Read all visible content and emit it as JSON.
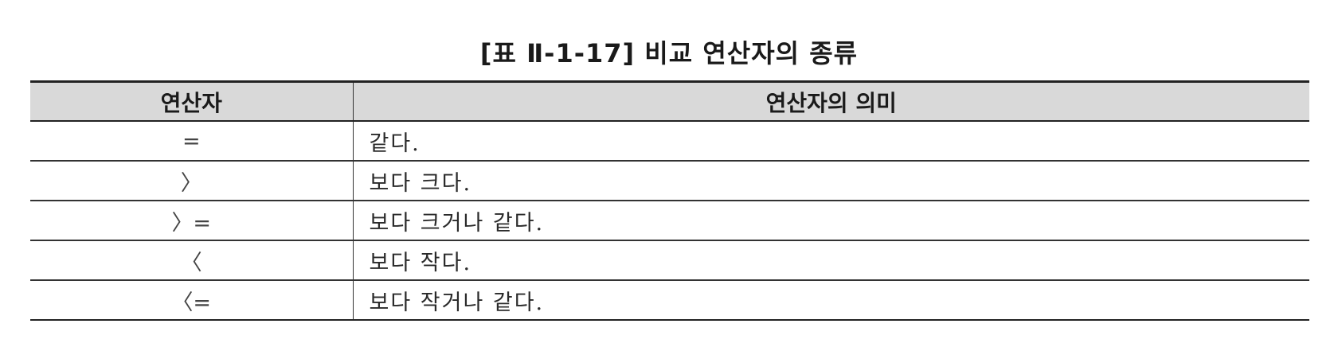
{
  "caption": "[표 Ⅱ-1-17] 비교 연산자의 종류",
  "table": {
    "headers": [
      "연산자",
      "연산자의 의미"
    ],
    "rows": [
      {
        "operator": "=",
        "meaning": "같다."
      },
      {
        "operator": "〉",
        "meaning": "보다 크다."
      },
      {
        "operator": "〉=",
        "meaning": "보다 크거나 같다."
      },
      {
        "operator": "〈",
        "meaning": "보다 작다."
      },
      {
        "operator": "〈=",
        "meaning": "보다 작거나 같다."
      }
    ]
  }
}
